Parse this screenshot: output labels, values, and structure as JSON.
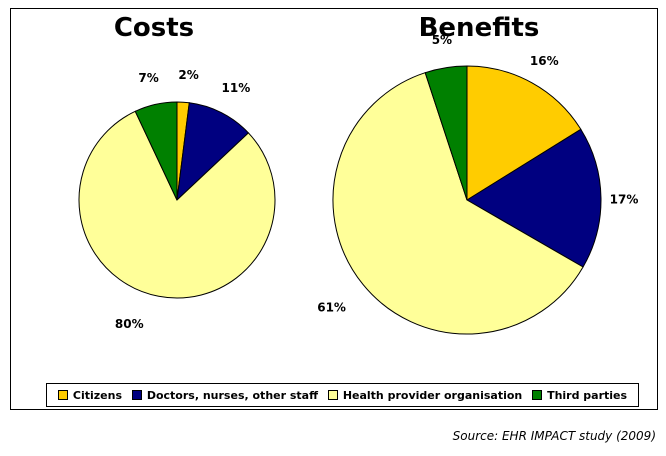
{
  "legend": [
    {
      "label": "Citizens",
      "color": "#FFCC00"
    },
    {
      "label": "Doctors, nurses, other staff",
      "color": "#000080"
    },
    {
      "label": "Health provider organisation",
      "color": "#FFFF99"
    },
    {
      "label": "Third parties",
      "color": "#008000"
    }
  ],
  "source": "Source: EHR IMPACT study (2009)",
  "chart_data": [
    {
      "type": "pie",
      "title": "Costs",
      "categories": [
        "Citizens",
        "Doctors, nurses, other staff",
        "Health provider organisation",
        "Third parties"
      ],
      "values": [
        2,
        11,
        80,
        7
      ],
      "labels": [
        "2%",
        "11%",
        "80%",
        "7%"
      ],
      "start_angle_deg": 0,
      "direction": "clockwise"
    },
    {
      "type": "pie",
      "title": "Benefits",
      "categories": [
        "Citizens",
        "Doctors, nurses, other staff",
        "Health provider organisation",
        "Third parties"
      ],
      "values": [
        16,
        17,
        61,
        5
      ],
      "labels": [
        "16%",
        "17%",
        "61%",
        "5%"
      ],
      "start_angle_deg": 0,
      "direction": "clockwise"
    }
  ]
}
